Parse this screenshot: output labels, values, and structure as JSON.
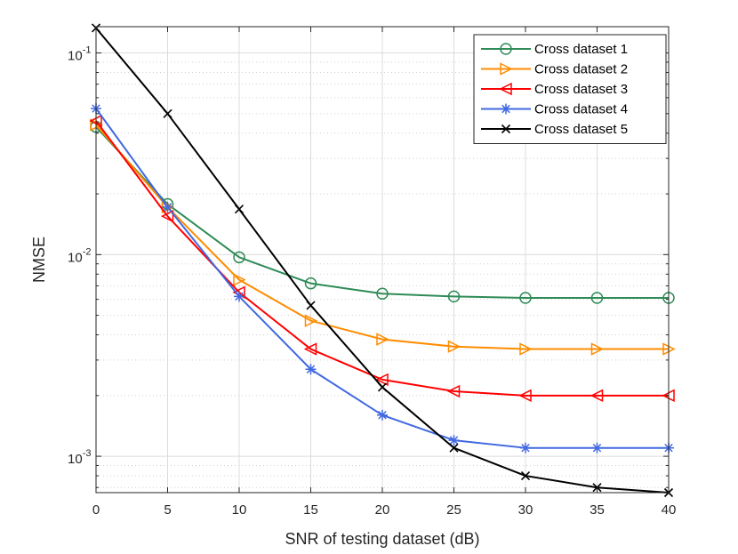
{
  "chart_data": {
    "type": "line",
    "title": "",
    "xlabel": "SNR of testing dataset (dB)",
    "ylabel": "NMSE",
    "yscale": "log",
    "x": [
      0,
      5,
      10,
      15,
      20,
      25,
      30,
      35,
      40
    ],
    "xlim": [
      0,
      40
    ],
    "ylim": [
      0.00066,
      0.135
    ],
    "xticks": [
      0,
      5,
      10,
      15,
      20,
      25,
      30,
      35,
      40
    ],
    "yticks": [
      {
        "value": 0.1,
        "base": "10",
        "exp": "-1"
      },
      {
        "value": 0.01,
        "base": "10",
        "exp": "-2"
      },
      {
        "value": 0.001,
        "base": "10",
        "exp": "-3"
      }
    ],
    "grid": true,
    "legend_position": "top-right",
    "series": [
      {
        "name": "Cross dataset 1",
        "color": "#2e8b57",
        "marker": "circle",
        "values": [
          0.043,
          0.0178,
          0.0097,
          0.0072,
          0.0064,
          0.0062,
          0.0061,
          0.0061,
          0.0061
        ]
      },
      {
        "name": "Cross dataset 2",
        "color": "#ff8c00",
        "marker": "triangle-right",
        "values": [
          0.044,
          0.0172,
          0.0075,
          0.0047,
          0.0038,
          0.0035,
          0.0034,
          0.0034,
          0.0034
        ]
      },
      {
        "name": "Cross dataset 3",
        "color": "#ff0000",
        "marker": "triangle-left",
        "values": [
          0.046,
          0.0155,
          0.0065,
          0.0034,
          0.0024,
          0.0021,
          0.002,
          0.002,
          0.002
        ]
      },
      {
        "name": "Cross dataset 4",
        "color": "#4169e1",
        "marker": "asterisk",
        "values": [
          0.053,
          0.0172,
          0.0062,
          0.0027,
          0.0016,
          0.0012,
          0.0011,
          0.0011,
          0.0011
        ]
      },
      {
        "name": "Cross dataset 5",
        "color": "#000000",
        "marker": "x",
        "values": [
          0.133,
          0.05,
          0.0168,
          0.0056,
          0.0022,
          0.0011,
          0.0008,
          0.0007,
          0.00066
        ]
      }
    ]
  }
}
